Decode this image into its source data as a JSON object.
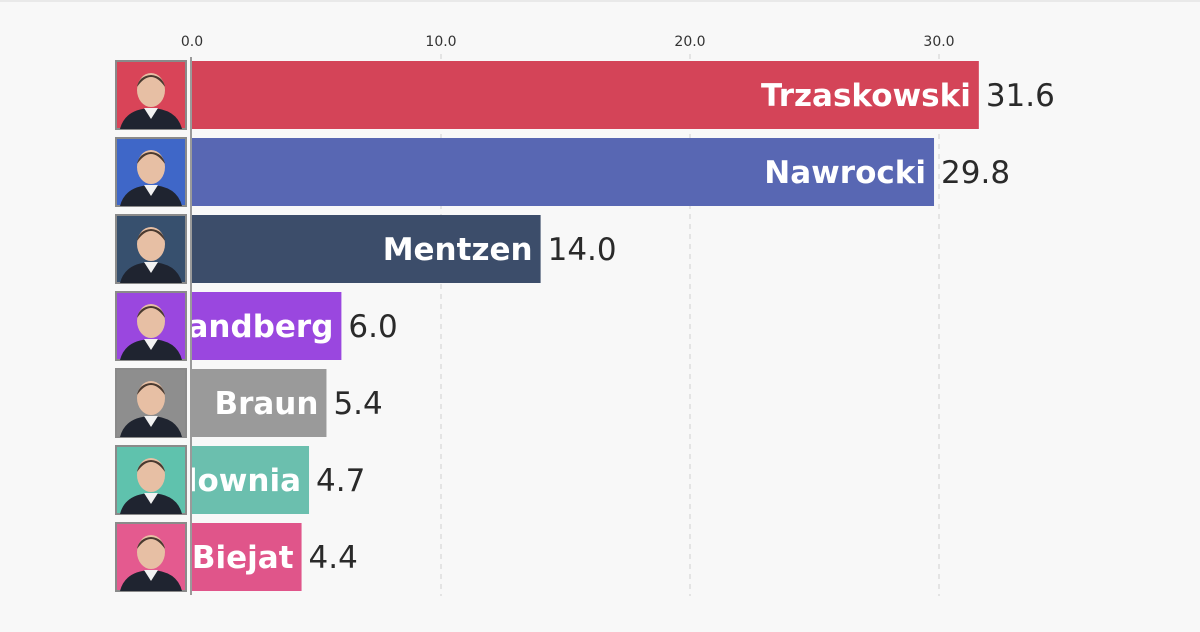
{
  "chart_data": {
    "type": "bar",
    "orientation": "horizontal",
    "xlim": [
      0,
      33
    ],
    "ticks": [
      {
        "value": 0,
        "label": "0.0"
      },
      {
        "value": 10,
        "label": "10.0"
      },
      {
        "value": 20,
        "label": "20.0"
      },
      {
        "value": 30,
        "label": "30.0"
      }
    ],
    "bars": [
      {
        "name": "Trzaskowski",
        "value": 31.6,
        "value_label": "31.6",
        "color": "#d44458",
        "avatar_bg": "#d94458"
      },
      {
        "name": "Nawrocki",
        "value": 29.8,
        "value_label": "29.8",
        "color": "#5867b3",
        "avatar_bg": "#3f67c8"
      },
      {
        "name": "Mentzen",
        "value": 14.0,
        "value_label": "14.0",
        "color": "#3c4d6a",
        "avatar_bg": "#37506e"
      },
      {
        "name": "andberg",
        "value": 6.0,
        "value_label": "6.0",
        "color": "#9a47df",
        "avatar_bg": "#9a47df"
      },
      {
        "name": "Braun",
        "value": 5.4,
        "value_label": "5.4",
        "color": "#9a9a9a",
        "avatar_bg": "#8e8e8e"
      },
      {
        "name": "lownia",
        "value": 4.7,
        "value_label": "4.7",
        "color": "#6bbfae",
        "avatar_bg": "#5fc2ad"
      },
      {
        "name": "Biejat",
        "value": 4.4,
        "value_label": "4.4",
        "color": "#e0558a",
        "avatar_bg": "#e45a8f"
      }
    ],
    "title": "",
    "xlabel": "",
    "ylabel": "",
    "grid": true
  }
}
